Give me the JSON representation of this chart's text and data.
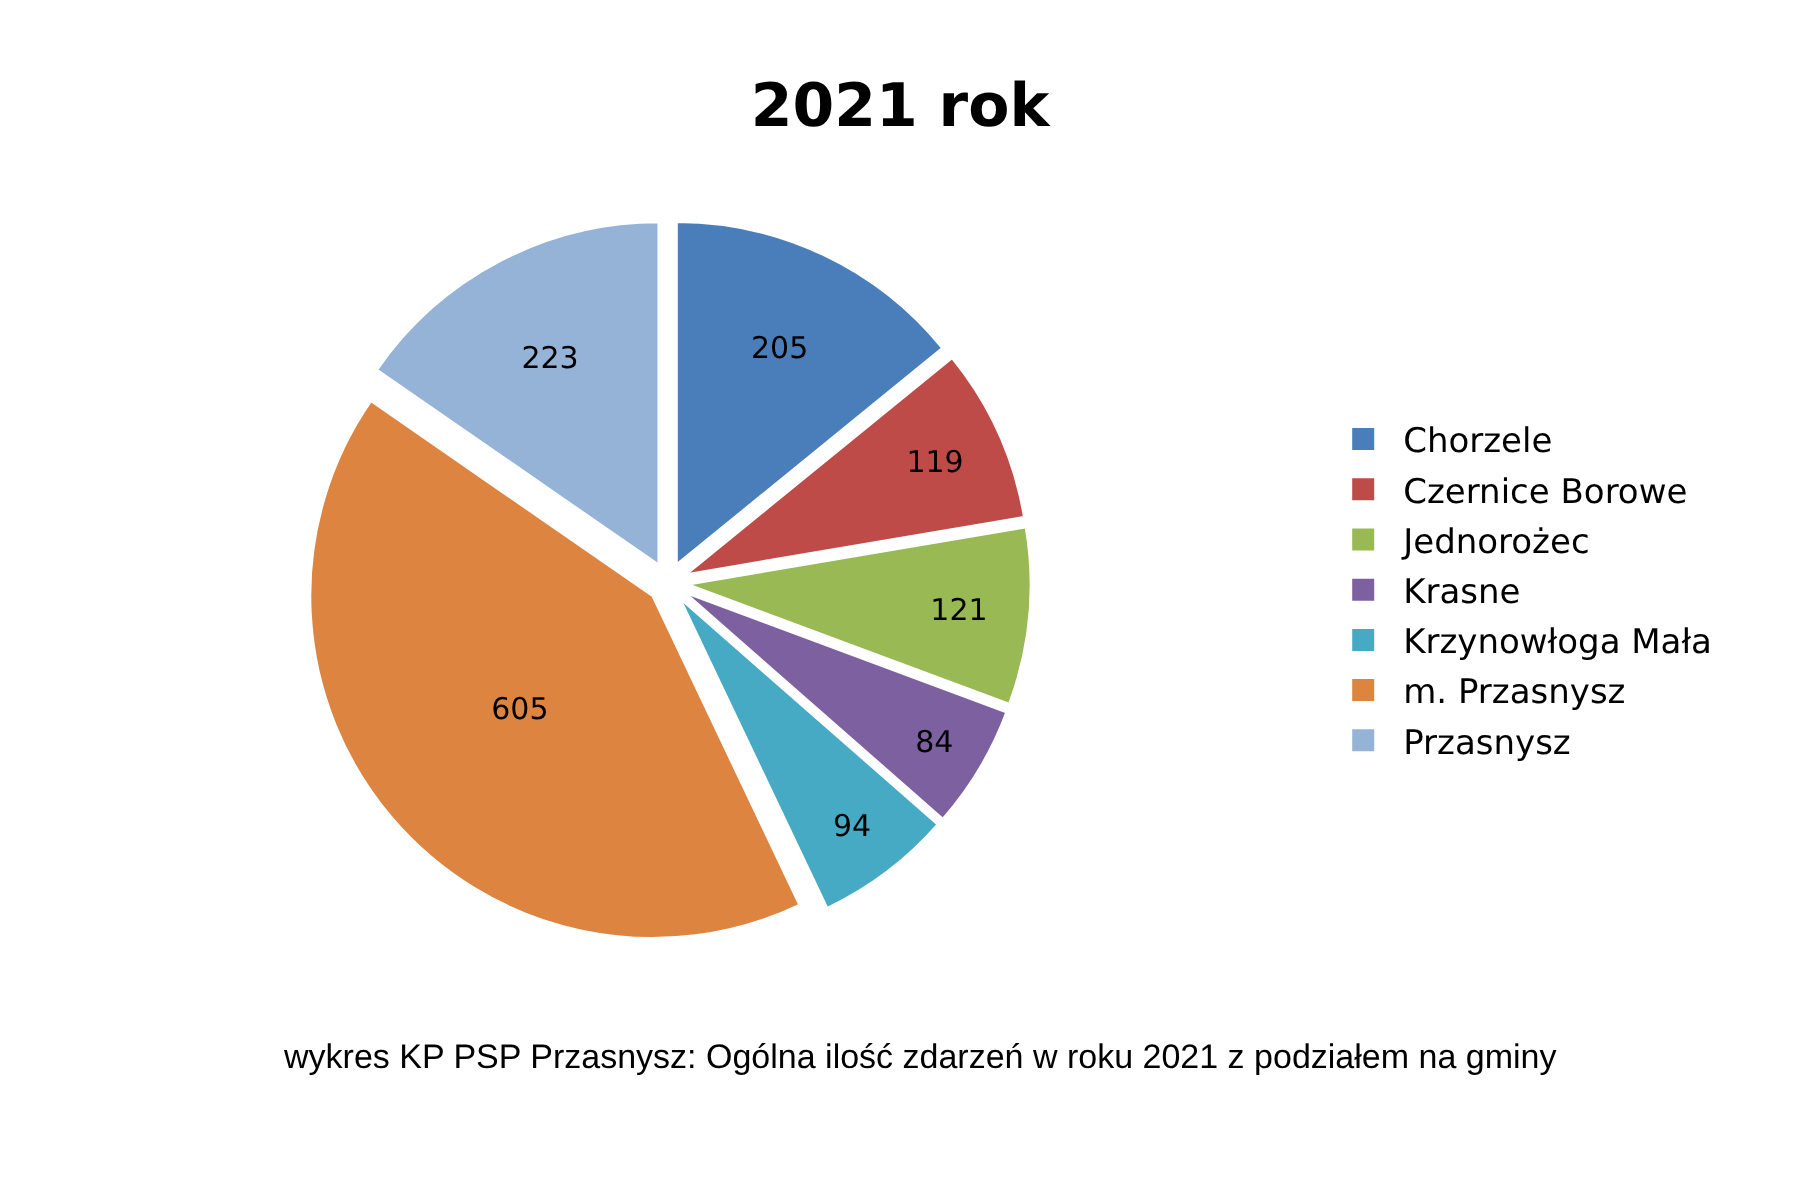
{
  "chart_data": {
    "type": "pie",
    "title": "2021 rok",
    "categories": [
      "Chorzele",
      "Czernice Borowe",
      "Jednorożec",
      "Krasne",
      "Krzynowłoga Mała",
      "m. Przasnysz",
      "Przasnysz"
    ],
    "values": [
      205,
      119,
      121,
      84,
      94,
      605,
      223
    ],
    "colors": [
      "#4a7ebb",
      "#be4b48",
      "#98b954",
      "#7d60a0",
      "#46aac5",
      "#dd8440",
      "#95b3d7"
    ],
    "data_labels": true,
    "legend": "right",
    "annotations": [
      "wykres KP PSP Przasnysz: Ogólna ilość zdarzeń w roku 2021 z podziałem na gminy"
    ]
  }
}
